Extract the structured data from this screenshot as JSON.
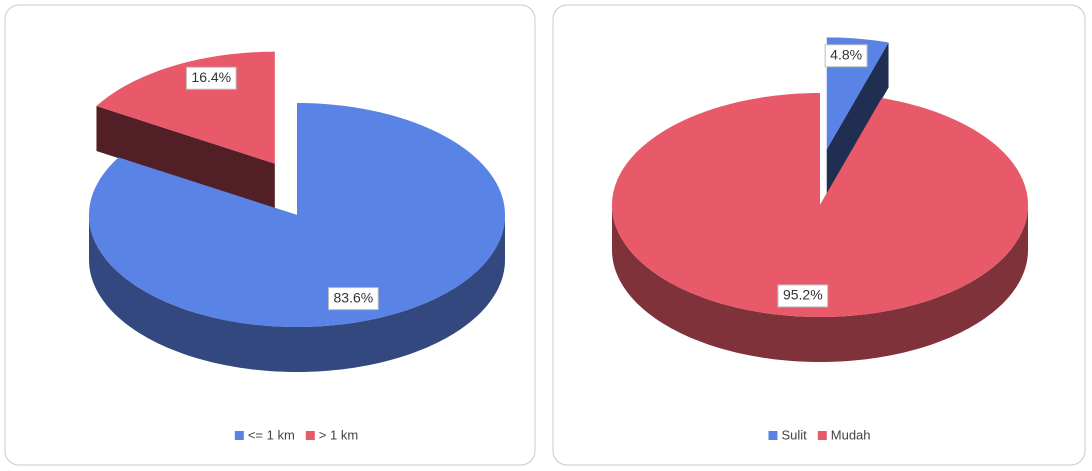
{
  "chart_data": [
    {
      "type": "pie",
      "categories": [
        "<= 1 km",
        "> 1 km"
      ],
      "values": [
        83.6,
        16.4
      ],
      "value_labels": [
        "83.6%",
        "16.4%"
      ],
      "colors": [
        "#5a83e6",
        "#e85a6a"
      ],
      "legend": "bottom"
    },
    {
      "type": "pie",
      "categories": [
        "Sulit",
        "Mudah"
      ],
      "values": [
        4.8,
        95.2
      ],
      "value_labels": [
        "4.8%",
        "95.2%"
      ],
      "colors": [
        "#5a83e6",
        "#e85a6a"
      ],
      "legend": "bottom"
    }
  ]
}
